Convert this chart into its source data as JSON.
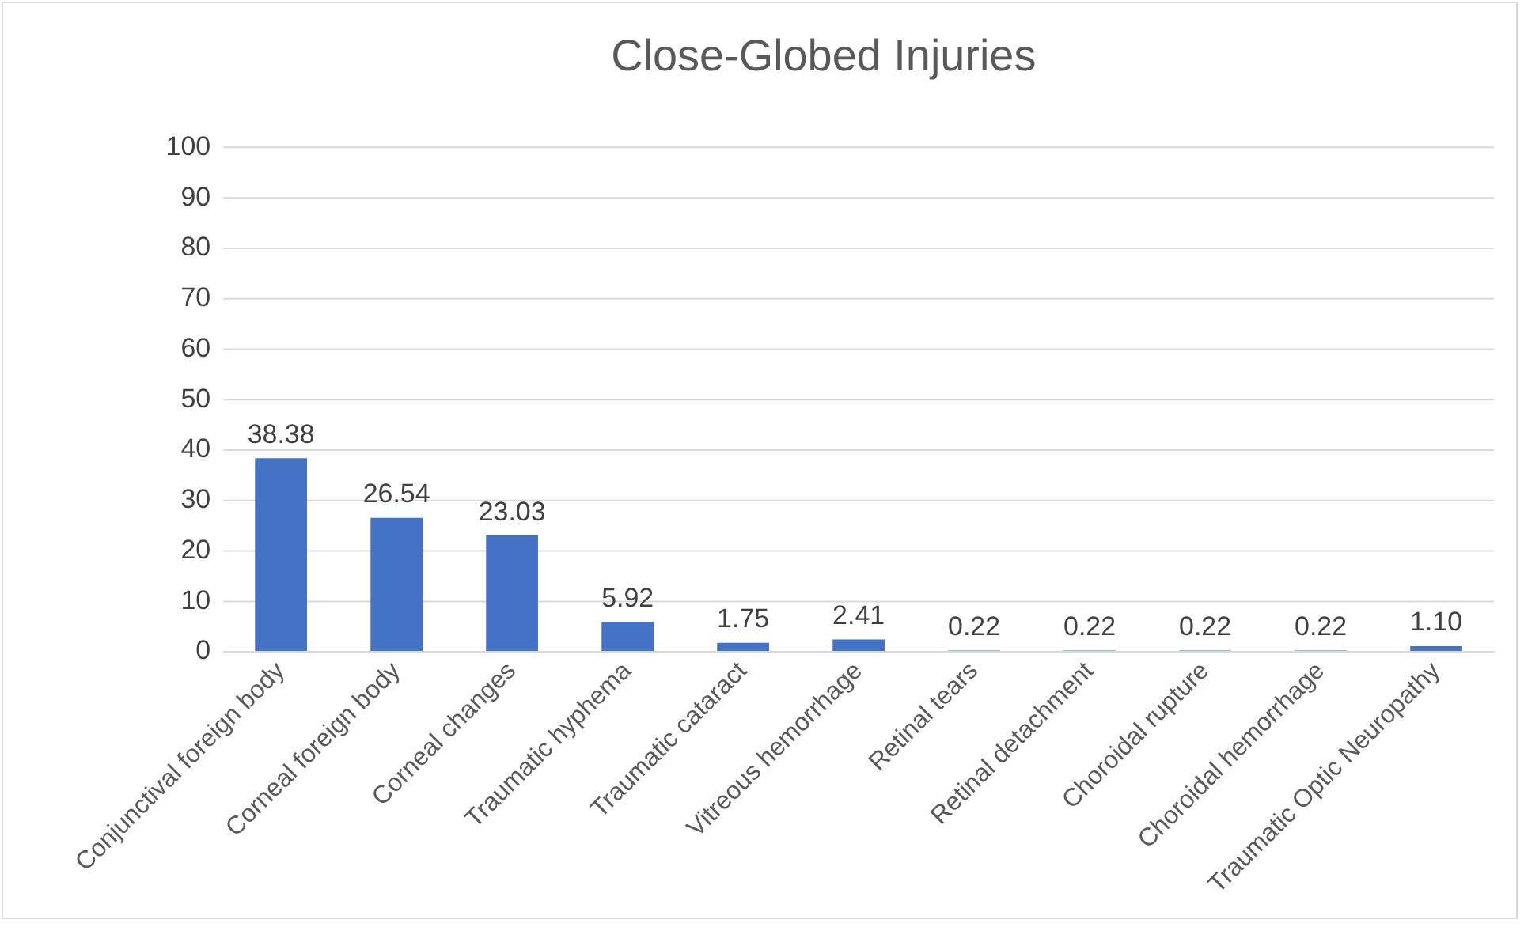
{
  "chart_data": {
    "type": "bar",
    "title": "Close-Globed Injuries",
    "categories": [
      "Conjunctival foreign body",
      "Corneal foreign body",
      "Corneal changes",
      "Traumatic hyphema",
      "Traumatic cataract",
      "Vitreous hemorrhage",
      "Retinal tears",
      "Retinal detachment",
      "Choroidal rupture",
      "Choroidal hemorrhage",
      "Traumatic Optic Neuropathy"
    ],
    "values": [
      38.38,
      26.54,
      23.03,
      5.92,
      1.75,
      2.41,
      0.22,
      0.22,
      0.22,
      0.22,
      1.1
    ],
    "value_labels": [
      "38.38",
      "26.54",
      "23.03",
      "5.92",
      "1.75",
      "2.41",
      "0.22",
      "0.22",
      "0.22",
      "0.22",
      "1.10"
    ],
    "color": "#4472c4",
    "ylim": [
      0,
      100
    ],
    "yticks": [
      0,
      10,
      20,
      30,
      40,
      50,
      60,
      70,
      80,
      90,
      100
    ],
    "grid": "y"
  }
}
